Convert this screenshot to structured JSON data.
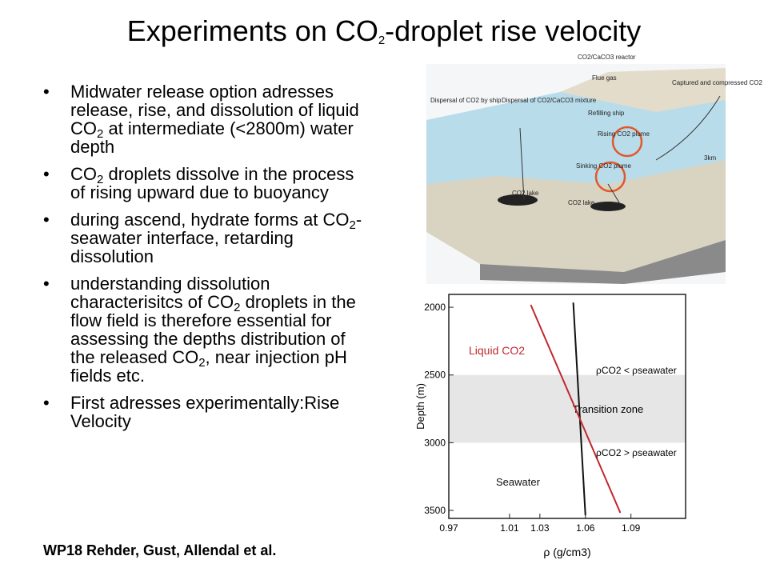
{
  "title": [
    "Experiments on CO",
    "2",
    "-droplet rise velocity"
  ],
  "bullets": [
    [
      "Midwater release option adresses release, rise, and dissolution of liquid CO",
      "2",
      " at intermediate (<2800m) water depth"
    ],
    [
      "CO",
      "2",
      " droplets dissolve in the process of rising upward due to buoyancy"
    ],
    [
      "during ascend, hydrate forms at CO",
      "2",
      "-seawater interface, retarding dissolution"
    ],
    [
      "understanding dissolution characterisitcs of CO",
      "2",
      " droplets in the flow field is therefore essential for assessing the depths distribution of the released CO",
      "2",
      ", near injection pH fields etc."
    ],
    [
      "First adresses experimentally:Rise Velocity"
    ]
  ],
  "footer": "WP18 Rehder, Gust, Allendal et al.",
  "illustration": {
    "labels": [
      "CO2/CaCO3 reactor",
      "Flue gas",
      "Captured and compressed CO2",
      "Dispersal of CO2 by ship",
      "Dispersal of CO2/CaCO3 mixture",
      "Refilling ship",
      "Rising CO2 plume",
      "Sinking CO2 plume",
      "3km",
      "CO2 lake",
      "CO2 lake"
    ]
  },
  "chart_data": {
    "type": "line",
    "xlabel": "ρ (g/cm3)",
    "ylabel": "Depth (m)",
    "xlim": [
      0.97,
      1.126
    ],
    "xticks": [
      0.97,
      1.01,
      1.03,
      1.06,
      1.09
    ],
    "ylim": [
      1905,
      3559
    ],
    "yticks": [
      2000,
      2500,
      3000,
      3500
    ],
    "yaxis_reversed": true,
    "series": [
      {
        "name": "Seawater",
        "color": "#111111",
        "x": [
          1.052,
          1.06
        ],
        "values": [
          1965,
          3536
        ]
      },
      {
        "name": "Liquid CO2",
        "color": "#c0282d",
        "x": [
          1.024,
          1.083
        ],
        "values": [
          1982,
          3518
        ]
      }
    ],
    "band": {
      "label": "Transition zone",
      "range": [
        2500,
        3000
      ]
    },
    "annotations": [
      "ρCO2 < ρseawater",
      "ρCO2 > ρseawater"
    ]
  }
}
